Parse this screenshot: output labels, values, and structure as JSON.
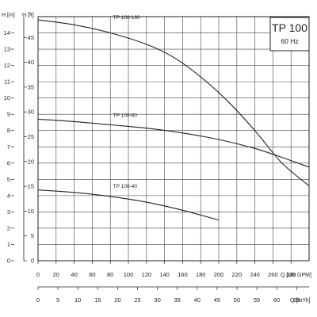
{
  "chart_data": {
    "type": "line",
    "title": "TP 100",
    "subtitle": "60 Hz",
    "y_label_m": "H [m]",
    "y_label_ft": "H [ft]",
    "x_label_gpm": "Q [US GPM]",
    "x_label_m3h": "Q [m³/h]",
    "grid": true,
    "xlim_gpm": [
      0,
      300
    ],
    "ylim_m": [
      0,
      15
    ],
    "ylim_ft": [
      0,
      49.2
    ],
    "ticks_m": [
      0,
      1,
      2,
      3,
      4,
      5,
      6,
      7,
      8,
      9,
      10,
      11,
      12,
      13,
      14
    ],
    "ticks_ft": [
      0,
      5,
      10,
      15,
      20,
      25,
      30,
      35,
      40,
      45
    ],
    "ticks_gpm": [
      0,
      20,
      40,
      60,
      80,
      100,
      120,
      140,
      160,
      180,
      200,
      220,
      240,
      260,
      280
    ],
    "ticks_m3h": [
      0,
      5,
      10,
      15,
      20,
      25,
      30,
      35,
      40,
      45,
      50,
      55,
      60,
      65
    ],
    "series": [
      {
        "name": "TP 100-160",
        "x": [
          0,
          40,
          80,
          120,
          150,
          180,
          210,
          240,
          270,
          300
        ],
        "y": [
          14.8,
          14.5,
          14.0,
          13.3,
          12.5,
          11.3,
          9.8,
          8.0,
          6.0,
          4.6
        ]
      },
      {
        "name": "TP 100-80",
        "x": [
          0,
          40,
          80,
          120,
          160,
          200,
          240,
          270,
          300
        ],
        "y": [
          8.7,
          8.55,
          8.35,
          8.15,
          7.85,
          7.45,
          6.9,
          6.35,
          5.75
        ]
      },
      {
        "name": "TP 100-40",
        "x": [
          0,
          40,
          80,
          120,
          160,
          200
        ],
        "y": [
          4.35,
          4.2,
          3.95,
          3.6,
          3.1,
          2.5
        ]
      }
    ]
  }
}
